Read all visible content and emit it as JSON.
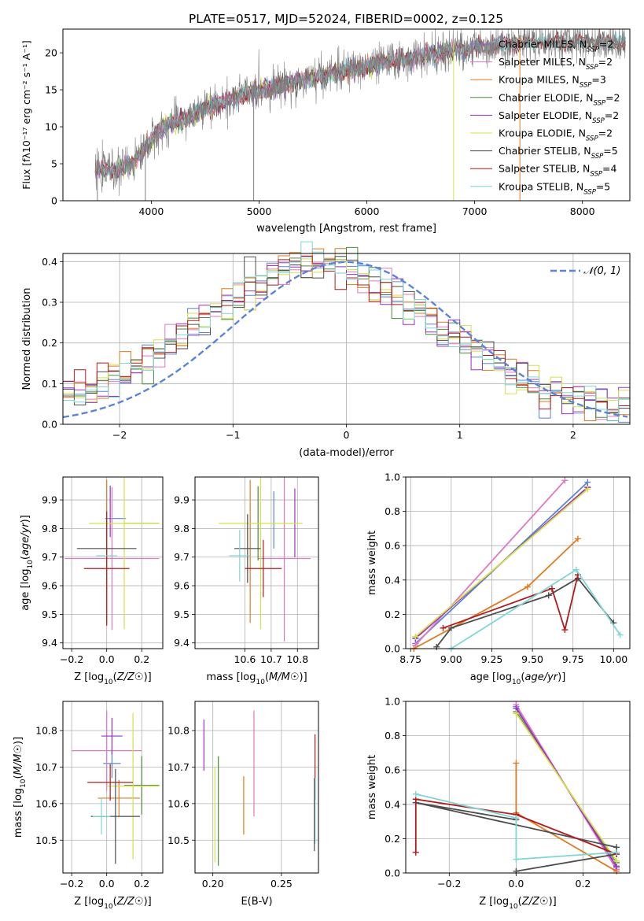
{
  "figure": {
    "title": "PLATE=0517, MJD=52024, FIBERID=0002, z=0.125"
  },
  "colors": {
    "Chabrier MILES": "#5b84d6",
    "Salpeter MILES": "#e377c2",
    "Kroupa MILES": "#e07a1f",
    "Chabrier ELODIE": "#4b8b3b",
    "Salpeter ELODIE": "#9b30c8",
    "Kroupa ELODIE": "#d6e04a",
    "Chabrier STELIB": "#4d4d4d",
    "Salpeter STELIB": "#b01c1c",
    "Kroupa STELIB": "#7fd6d6",
    "gauss": "#5b84d6"
  },
  "chart_data": [
    {
      "id": "spectrum",
      "type": "line",
      "title": "PLATE=0517, MJD=52024, FIBERID=0002, z=0.125",
      "xlabel": "wavelength [Angstrom, rest frame]",
      "ylabel": "Flux [fλ10⁻¹⁷ erg cm⁻² s⁻¹ A⁻¹]",
      "xlim": [
        3180,
        8440
      ],
      "ylim": [
        0,
        23.2
      ],
      "xticks": [
        4000,
        5000,
        6000,
        7000,
        8000
      ],
      "yticks": [
        0,
        5,
        10,
        15,
        20
      ],
      "legend": "top-right",
      "legend_entries": [
        {
          "label": "Chabrier MILES, N",
          "sub": "SSP",
          "tail": "=2",
          "color": "Chabrier MILES"
        },
        {
          "label": "Salpeter MILES, N",
          "sub": "SSP",
          "tail": "=2",
          "color": "Salpeter MILES"
        },
        {
          "label": "Kroupa MILES, N",
          "sub": "SSP",
          "tail": "=3",
          "color": "Kroupa MILES"
        },
        {
          "label": "Chabrier ELODIE, N",
          "sub": "SSP",
          "tail": "=2",
          "color": "Chabrier ELODIE"
        },
        {
          "label": "Salpeter ELODIE, N",
          "sub": "SSP",
          "tail": "=2",
          "color": "Salpeter ELODIE"
        },
        {
          "label": "Kroupa ELODIE, N",
          "sub": "SSP",
          "tail": "=2",
          "color": "Kroupa ELODIE"
        },
        {
          "label": "Chabrier STELIB, N",
          "sub": "SSP",
          "tail": "=5",
          "color": "Chabrier STELIB"
        },
        {
          "label": "Salpeter STELIB, N",
          "sub": "SSP",
          "tail": "=4",
          "color": "Salpeter STELIB"
        },
        {
          "label": "Kroupa STELIB, N",
          "sub": "SSP",
          "tail": "=5",
          "color": "Kroupa STELIB"
        }
      ],
      "continuum": {
        "x": [
          3500,
          3650,
          3800,
          3950,
          4100,
          4300,
          4500,
          4700,
          4900,
          5100,
          5300,
          5500,
          5700,
          5900,
          6100,
          6300,
          6500,
          6700,
          6900,
          7100,
          7300,
          7500,
          7700,
          7900,
          8100,
          8300
        ],
        "y": [
          4.2,
          4.0,
          4.8,
          7.2,
          9.9,
          11.0,
          12.4,
          13.5,
          14.5,
          15.3,
          16.0,
          16.6,
          17.3,
          17.9,
          18.5,
          19.0,
          19.5,
          20.0,
          20.5,
          20.9,
          21.2,
          21.5,
          21.5,
          21.6,
          21.5,
          21.4
        ]
      },
      "spikes": [
        {
          "x": 3500,
          "y": 0
        },
        {
          "x": 3945,
          "y": 0
        },
        {
          "x": 4950,
          "y": 0
        },
        {
          "x": 6805,
          "y": 0
        },
        {
          "x": 7420,
          "y": 0
        }
      ]
    },
    {
      "id": "residuals",
      "type": "histogram",
      "xlabel": "(data-model)/error",
      "ylabel": "Normed distribution",
      "xlim": [
        -2.5,
        2.5
      ],
      "ylim": [
        0,
        0.42
      ],
      "xticks": [
        -2,
        -1,
        0,
        1,
        2
      ],
      "yticks": [
        0.0,
        0.1,
        0.2,
        0.3,
        0.4
      ],
      "legend": "top-right",
      "gauss_label": "𝒩(0, 1)",
      "bin_width": 0.1
    },
    {
      "id": "age-vs-Z",
      "type": "scatter",
      "xlabel": "Z [log10(Z/Z☉)]",
      "ylabel": "age  [log10(age/yr)]",
      "xlim": [
        -0.25,
        0.32
      ],
      "ylim": [
        9.38,
        9.98
      ],
      "xticks": [
        -0.2,
        0.0,
        0.2
      ],
      "yticks": [
        9.4,
        9.5,
        9.6,
        9.7,
        9.8,
        9.9
      ],
      "points": [
        {
          "s": "Chabrier MILES",
          "x": 0.05,
          "xe": 0.06,
          "y": 9.835,
          "ye": 0.0
        },
        {
          "s": "Salpeter MILES",
          "x": 0.03,
          "xe": 0.27,
          "y": 9.695,
          "ye": 0.25
        },
        {
          "s": "Kroupa MILES",
          "x": 0.0,
          "xe": 0.0,
          "y": 9.72,
          "ye": 0.25
        },
        {
          "s": "Chabrier ELODIE",
          "x": 0.2,
          "xe": 0.1,
          "y": 9.818,
          "ye": 0.0
        },
        {
          "s": "Salpeter ELODIE",
          "x": 0.02,
          "xe": 0.0,
          "y": 9.86,
          "ye": 0.09
        },
        {
          "s": "Kroupa ELODIE",
          "x": 0.1,
          "xe": 0.2,
          "y": 9.818,
          "ye": 0.37
        },
        {
          "s": "Chabrier STELIB",
          "x": 0.0,
          "xe": 0.17,
          "y": 9.73,
          "ye": 0.0
        },
        {
          "s": "Salpeter STELIB",
          "x": 0.0,
          "xe": 0.13,
          "y": 9.66,
          "ye": 0.2
        },
        {
          "s": "Kroupa STELIB",
          "x": 0.0,
          "xe": 0.06,
          "y": 9.705,
          "ye": 0.0
        }
      ]
    },
    {
      "id": "age-vs-mass",
      "type": "scatter",
      "xlabel": "mass [log10(M/M☉)]",
      "ylabel": "",
      "xlim": [
        10.41,
        10.88
      ],
      "ylim": [
        9.38,
        9.98
      ],
      "xticks": [
        10.6,
        10.7,
        10.8
      ],
      "yticks": [
        9.4,
        9.5,
        9.6,
        9.7,
        9.8,
        9.9
      ],
      "points": [
        {
          "s": "Chabrier MILES",
          "x": 10.71,
          "xe": 0.0,
          "y": 9.83,
          "ye": 0.1
        },
        {
          "s": "Salpeter MILES",
          "x": 10.75,
          "xe": 0.1,
          "y": 9.695,
          "ye": 0.29
        },
        {
          "s": "Kroupa MILES",
          "x": 10.62,
          "xe": 0.0,
          "y": 9.72,
          "ye": 0.25
        },
        {
          "s": "Chabrier ELODIE",
          "x": 10.65,
          "xe": 0.0,
          "y": 9.818,
          "ye": 0.13
        },
        {
          "s": "Salpeter ELODIE",
          "x": 10.79,
          "xe": 0.0,
          "y": 9.82,
          "ye": 0.12
        },
        {
          "s": "Kroupa ELODIE",
          "x": 10.66,
          "xe": 0.16,
          "y": 9.818,
          "ye": 0.37
        },
        {
          "s": "Chabrier STELIB",
          "x": 10.61,
          "xe": 0.05,
          "y": 9.73,
          "ye": 0.12
        },
        {
          "s": "Salpeter STELIB",
          "x": 10.67,
          "xe": 0.07,
          "y": 9.66,
          "ye": 0.1
        },
        {
          "s": "Kroupa STELIB",
          "x": 10.58,
          "xe": 0.04,
          "y": 9.705,
          "ye": 0.09
        }
      ]
    },
    {
      "id": "weight-vs-age",
      "type": "line",
      "xlabel": "age  [log10(age/yr)]",
      "ylabel": "mass weight",
      "xlim": [
        8.72,
        10.1
      ],
      "ylim": [
        0,
        1.0
      ],
      "xticks": [
        8.75,
        9.0,
        9.25,
        9.5,
        9.75,
        10.0
      ],
      "yticks": [
        0.0,
        0.2,
        0.4,
        0.6,
        0.8,
        1.0
      ],
      "series": [
        {
          "s": "Chabrier MILES",
          "x": [
            8.78,
            9.84
          ],
          "y": [
            0.03,
            0.97
          ]
        },
        {
          "s": "Salpeter MILES",
          "x": [
            8.78,
            9.7
          ],
          "y": [
            0.02,
            0.98
          ]
        },
        {
          "s": "Kroupa MILES",
          "x": [
            8.77,
            9.47,
            9.78
          ],
          "y": [
            0.0,
            0.36,
            0.64
          ]
        },
        {
          "s": "Chabrier ELODIE",
          "x": [
            8.78,
            9.84
          ],
          "y": [
            0.06,
            0.94
          ]
        },
        {
          "s": "Salpeter ELODIE",
          "x": [
            8.78,
            9.84
          ],
          "y": [
            0.06,
            0.94
          ]
        },
        {
          "s": "Kroupa ELODIE",
          "x": [
            8.78,
            9.84
          ],
          "y": [
            0.07,
            0.93
          ]
        },
        {
          "s": "Chabrier STELIB",
          "x": [
            8.91,
            9.0,
            9.6,
            9.78,
            10.0
          ],
          "y": [
            0.01,
            0.12,
            0.31,
            0.41,
            0.15
          ]
        },
        {
          "s": "Salpeter STELIB",
          "x": [
            8.95,
            9.62,
            9.7,
            9.78
          ],
          "y": [
            0.12,
            0.35,
            0.11,
            0.43
          ]
        },
        {
          "s": "Kroupa STELIB",
          "x": [
            9.0,
            9.77,
            10.04
          ],
          "y": [
            0.0,
            0.46,
            0.08
          ]
        }
      ]
    },
    {
      "id": "mass-vs-Z",
      "type": "scatter",
      "xlabel": "Z [log10(Z/Z☉)]",
      "ylabel": "mass [log10(M/M☉)]",
      "xlim": [
        -0.25,
        0.32
      ],
      "ylim": [
        10.41,
        10.88
      ],
      "xticks": [
        -0.2,
        0.0,
        0.2
      ],
      "yticks": [
        10.5,
        10.6,
        10.7,
        10.8
      ],
      "points": [
        {
          "s": "Chabrier MILES",
          "x": 0.03,
          "xe": 0.05,
          "y": 10.71,
          "ye": 0.04
        },
        {
          "s": "Salpeter MILES",
          "x": 0.0,
          "xe": 0.2,
          "y": 10.745,
          "ye": 0.11
        },
        {
          "s": "Kroupa MILES",
          "x": 0.07,
          "xe": 0.12,
          "y": 10.615,
          "ye": 0.05
        },
        {
          "s": "Chabrier ELODIE",
          "x": 0.2,
          "xe": 0.1,
          "y": 10.65,
          "ye": 0.08
        },
        {
          "s": "Salpeter ELODIE",
          "x": 0.03,
          "xe": 0.06,
          "y": 10.785,
          "ye": 0.05
        },
        {
          "s": "Kroupa ELODIE",
          "x": 0.15,
          "xe": 0.15,
          "y": 10.648,
          "ye": 0.2
        },
        {
          "s": "Chabrier STELIB",
          "x": 0.05,
          "xe": 0.14,
          "y": 10.565,
          "ye": 0.13
        },
        {
          "s": "Salpeter STELIB",
          "x": 0.02,
          "xe": 0.13,
          "y": 10.658,
          "ye": 0.05
        },
        {
          "s": "Kroupa STELIB",
          "x": -0.03,
          "xe": 0.05,
          "y": 10.565,
          "ye": 0.05
        }
      ]
    },
    {
      "id": "mass-vs-ebv",
      "type": "scatter",
      "xlabel": "E(B-V)",
      "ylabel": "",
      "xlim": [
        0.187,
        0.277
      ],
      "ylim": [
        10.41,
        10.88
      ],
      "xticks": [
        0.2,
        0.25
      ],
      "yticks": [
        10.5,
        10.6,
        10.7,
        10.8
      ],
      "points": [
        {
          "s": "Salpeter ELODIE",
          "x": 0.1935,
          "xe": 0.0,
          "y": 10.76,
          "ye": 0.07
        },
        {
          "s": "Kroupa ELODIE",
          "x": 0.2015,
          "xe": 0.0,
          "y": 10.57,
          "ye": 0.13
        },
        {
          "s": "Chabrier ELODIE",
          "x": 0.204,
          "xe": 0.0,
          "y": 10.58,
          "ye": 0.15
        },
        {
          "s": "Kroupa MILES",
          "x": 0.2225,
          "xe": 0.0,
          "y": 10.595,
          "ye": 0.08
        },
        {
          "s": "Salpeter MILES",
          "x": 0.23,
          "xe": 0.0,
          "y": 10.71,
          "ye": 0.145
        },
        {
          "s": "Salpeter STELIB",
          "x": 0.2745,
          "xe": 0.0,
          "y": 10.7,
          "ye": 0.09
        },
        {
          "s": "Kroupa STELIB",
          "x": 0.2745,
          "xe": 0.0,
          "y": 10.58,
          "ye": 0.09
        },
        {
          "s": "Chabrier STELIB",
          "x": 0.274,
          "xe": 0.0,
          "y": 10.57,
          "ye": 0.1
        }
      ]
    },
    {
      "id": "weight-vs-Z",
      "type": "line",
      "xlabel": "Z [log10(Z/Z☉)]",
      "ylabel": "mass weight",
      "xlim": [
        -0.33,
        0.34
      ],
      "ylim": [
        0,
        1.0
      ],
      "xticks": [
        -0.2,
        0.0,
        0.2
      ],
      "yticks": [
        0.0,
        0.2,
        0.4,
        0.6,
        0.8,
        1.0
      ],
      "series": [
        {
          "s": "Chabrier MILES",
          "x": [
            0.0,
            0.3
          ],
          "y": [
            0.97,
            0.03
          ]
        },
        {
          "s": "Salpeter MILES",
          "x": [
            0.0,
            0.3
          ],
          "y": [
            0.98,
            0.02
          ]
        },
        {
          "s": "Kroupa MILES",
          "x": [
            0.0,
            0.0,
            0.3
          ],
          "y": [
            0.64,
            0.35,
            0.01
          ]
        },
        {
          "s": "Chabrier ELODIE",
          "x": [
            0.0,
            0.3
          ],
          "y": [
            0.94,
            0.06
          ]
        },
        {
          "s": "Salpeter ELODIE",
          "x": [
            0.0,
            0.3
          ],
          "y": [
            0.96,
            0.04
          ]
        },
        {
          "s": "Kroupa ELODIE",
          "x": [
            0.0,
            0.3
          ],
          "y": [
            0.93,
            0.07
          ]
        },
        {
          "s": "Chabrier STELIB",
          "x": [
            0.0,
            0.3,
            0.3,
            -0.3,
            0.0
          ],
          "y": [
            0.01,
            0.11,
            0.15,
            0.41,
            0.31
          ]
        },
        {
          "s": "Salpeter STELIB",
          "x": [
            -0.3,
            -0.3,
            0.0,
            0.3
          ],
          "y": [
            0.12,
            0.43,
            0.34,
            0.11
          ]
        },
        {
          "s": "Kroupa STELIB",
          "x": [
            -0.3,
            0.0,
            0.0,
            0.3
          ],
          "y": [
            0.46,
            0.32,
            0.08,
            0.12
          ]
        }
      ]
    }
  ]
}
